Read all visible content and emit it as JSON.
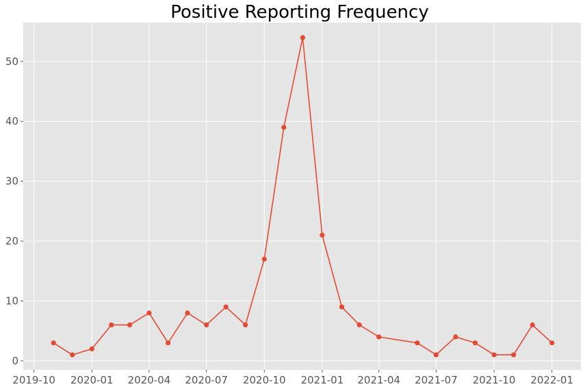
{
  "chart_data": {
    "type": "line",
    "title": "Positive Reporting Frequency",
    "xlabel": "",
    "ylabel": "",
    "x": [
      "2019-11-01",
      "2019-12-01",
      "2020-01-01",
      "2020-02-01",
      "2020-03-01",
      "2020-04-01",
      "2020-05-01",
      "2020-06-01",
      "2020-07-01",
      "2020-08-01",
      "2020-09-01",
      "2020-10-01",
      "2020-11-01",
      "2020-12-01",
      "2021-01-01",
      "2021-02-01",
      "2021-03-01",
      "2021-04-01",
      "2021-06-01",
      "2021-07-01",
      "2021-08-01",
      "2021-09-01",
      "2021-10-01",
      "2021-11-01",
      "2021-12-01",
      "2022-01-01"
    ],
    "series": [
      {
        "values": [
          3,
          1,
          2,
          6,
          6,
          8,
          3,
          8,
          6,
          9,
          6,
          17,
          39,
          54,
          21,
          9,
          6,
          4,
          3,
          1,
          4,
          3,
          1,
          1,
          6,
          3
        ]
      }
    ],
    "xlim": [
      "2019-09-14",
      "2022-02-16"
    ],
    "ylim": [
      -1.5,
      56.5
    ],
    "x_ticks": [
      {
        "value": "2019-10-01",
        "label": "2019-10"
      },
      {
        "value": "2020-01-01",
        "label": "2020-01"
      },
      {
        "value": "2020-04-01",
        "label": "2020-04"
      },
      {
        "value": "2020-07-01",
        "label": "2020-07"
      },
      {
        "value": "2020-10-01",
        "label": "2020-10"
      },
      {
        "value": "2021-01-01",
        "label": "2021-01"
      },
      {
        "value": "2021-04-01",
        "label": "2021-04"
      },
      {
        "value": "2021-07-01",
        "label": "2021-07"
      },
      {
        "value": "2021-10-01",
        "label": "2021-10"
      },
      {
        "value": "2022-01-01",
        "label": "2022-01"
      }
    ],
    "y_ticks": [
      0,
      10,
      20,
      30,
      40,
      50
    ],
    "grid": true,
    "legend": "none",
    "colors": {
      "line": "#E24A33",
      "plot_background": "#E5E5E5",
      "grid": "#FFFFFF",
      "tick_text": "#555555"
    }
  }
}
